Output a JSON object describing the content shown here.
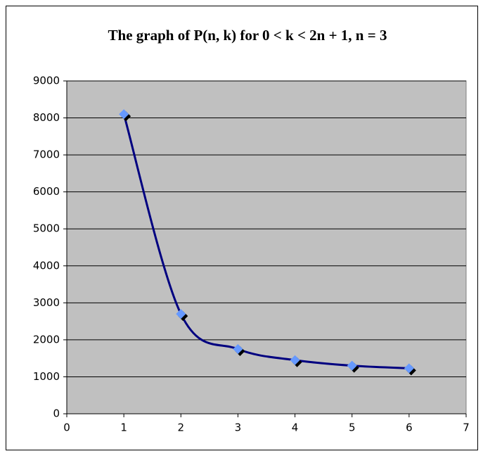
{
  "chart_data": {
    "type": "line",
    "title": "The graph of P(n, k) for 0 < k < 2n + 1, n = 3",
    "x": [
      1,
      2,
      3,
      4,
      5,
      6
    ],
    "series": [
      {
        "color": "#000080",
        "marker_color": "#6699ff",
        "values": [
          8100,
          2700,
          1750,
          1450,
          1300,
          1230
        ]
      }
    ],
    "xlim": [
      0,
      7
    ],
    "xticks": [
      0,
      1,
      2,
      3,
      4,
      5,
      6,
      7
    ],
    "ylim": [
      0,
      9000
    ],
    "yticks": [
      0,
      1000,
      2000,
      3000,
      4000,
      5000,
      6000,
      7000,
      8000,
      9000
    ],
    "grid": true,
    "smooth": true
  }
}
